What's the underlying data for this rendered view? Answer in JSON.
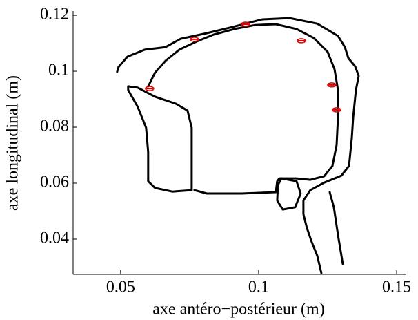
{
  "chart_data": {
    "type": "line",
    "xlabel": "axe antéro−postérieur (m)",
    "ylabel": "axe longitudinal (m)",
    "xlim": [
      0.0328,
      0.1535
    ],
    "ylim": [
      0.0274,
      0.1215
    ],
    "xticks": [
      0.05,
      0.1,
      0.15
    ],
    "yticks": [
      0.04,
      0.06,
      0.08,
      0.1,
      0.12
    ],
    "grid": false,
    "series": [
      {
        "color": "#000000",
        "style": "line",
        "x": [
          0.04875,
          0.04925,
          0.0525,
          0.05875,
          0.06625,
          0.07175,
          0.08125,
          0.09125,
          0.10125,
          0.11125,
          0.12125,
          0.12875,
          0.13125,
          0.1325,
          0.135,
          0.13625,
          0.13525,
          0.13425,
          0.13375,
          0.13275,
          0.13,
          0.12375,
          0.11875,
          0.11625,
          0.11625,
          0.1175,
          0.11925,
          0.12125,
          0.12275
        ],
        "values": [
          0.0998,
          0.1015,
          0.1052,
          0.1077,
          0.1086,
          0.1116,
          0.1136,
          0.116,
          0.1185,
          0.119,
          0.117,
          0.1126,
          0.1086,
          0.1047,
          0.1017,
          0.0983,
          0.0933,
          0.0835,
          0.076,
          0.0662,
          0.0627,
          0.0602,
          0.0575,
          0.0538,
          0.0489,
          0.044,
          0.039,
          0.0341,
          0.0279
        ]
      },
      {
        "color": "#000000",
        "style": "line",
        "x": [
          0.06,
          0.0625,
          0.06625,
          0.07125,
          0.0775,
          0.08375,
          0.09125,
          0.09875,
          0.10625,
          0.11375,
          0.12,
          0.125,
          0.1275,
          0.12875,
          0.12875,
          0.12825,
          0.12675,
          0.12375,
          0.11875,
          0.11375,
          0.1075,
          0.10675,
          0.10625,
          0.09375,
          0.08125,
          0.07675
        ],
        "values": [
          0.0946,
          0.0995,
          0.1037,
          0.1077,
          0.1106,
          0.1131,
          0.1151,
          0.1165,
          0.1168,
          0.1151,
          0.1119,
          0.1069,
          0.1007,
          0.0933,
          0.0835,
          0.0736,
          0.0662,
          0.0625,
          0.0612,
          0.0617,
          0.0617,
          0.0607,
          0.0568,
          0.0563,
          0.0563,
          0.0575
        ]
      },
      {
        "color": "#000000",
        "style": "line",
        "x": [
          0.05275,
          0.05625,
          0.0625,
          0.07,
          0.07425,
          0.07575,
          0.07575,
          0.07575,
          0.06875,
          0.0625,
          0.06,
          0.06,
          0.05925,
          0.05625,
          0.05275,
          0.05275
        ],
        "values": [
          0.0946,
          0.0941,
          0.0909,
          0.0884,
          0.0859,
          0.0798,
          0.0686,
          0.0575,
          0.057,
          0.0583,
          0.0607,
          0.0711,
          0.0798,
          0.0872,
          0.0933,
          0.0946
        ]
      },
      {
        "color": "#000000",
        "style": "line",
        "x": [
          0.10825,
          0.11375,
          0.11525,
          0.11325,
          0.10875,
          0.10675,
          0.107,
          0.10825
        ],
        "values": [
          0.0617,
          0.0607,
          0.0563,
          0.0514,
          0.0506,
          0.0538,
          0.0593,
          0.0617
        ]
      },
      {
        "color": "#000000",
        "style": "line",
        "x": [
          0.12575,
          0.12725,
          0.12875,
          0.1305
        ],
        "values": [
          0.0568,
          0.0514,
          0.0415,
          0.0311
        ]
      },
      {
        "color": "#e00000",
        "style": "markers",
        "x": [
          0.0605,
          0.07675,
          0.09525,
          0.1155,
          0.1265,
          0.12825
        ],
        "values": [
          0.0938,
          0.1114,
          0.1168,
          0.1109,
          0.0951,
          0.0862
        ]
      }
    ]
  }
}
